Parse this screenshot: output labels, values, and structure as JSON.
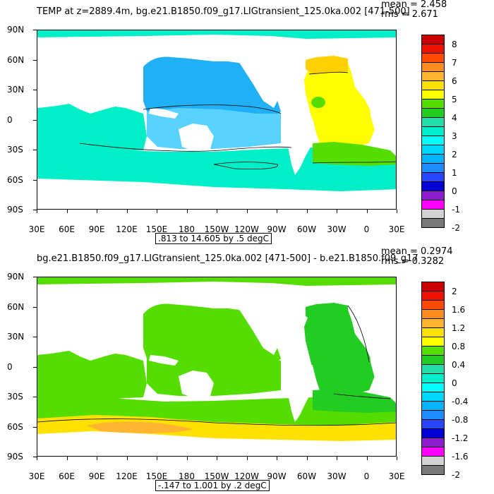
{
  "panels": [
    {
      "title": "TEMP at z=2889.4m, bg.e21.B1850.f09_g17.LIGtransient_125.0ka.002 [471-500]",
      "mean_label": "mean = 2.458",
      "rms_label": "rms = 2.671",
      "range_label": ".813 to 14.605 by .5 degC",
      "colorbar": {
        "labels": [
          "8",
          "7",
          "6",
          "5",
          "4",
          "3",
          "2",
          "1",
          "0",
          "-1",
          "-2"
        ],
        "colors": [
          "#c80000",
          "#ee1000",
          "#ff4a00",
          "#ff8c1e",
          "#ffb432",
          "#ffe100",
          "#ffff00",
          "#55dd00",
          "#22cc22",
          "#22ddaa",
          "#00eecc",
          "#00ffff",
          "#00d7ff",
          "#00b4ff",
          "#1e8cff",
          "#2846ff",
          "#0000d2",
          "#8c1ecd",
          "#ff00ff",
          "#d2d2d2",
          "#787878"
        ]
      },
      "fields": {
        "pacific": "#1fb0f6",
        "pacific_band": "#5ad2ff",
        "southern": "#00eec8",
        "atlantic": "#ffff00",
        "atlantic_band": "#ffd100",
        "atl_south": "#55dd00",
        "indian": "#00eec8",
        "arctic": "#00eec8"
      }
    },
    {
      "title": "bg.e21.B1850.f09_g17.LIGtransient_125.0ka.002 [471-500] - b.e21.B1850.f09_g17",
      "mean_label": "mean = 0.2974",
      "rms_label": "rms = 0.3282",
      "range_label": "-.147 to 1.001 by .2 degC",
      "colorbar": {
        "labels": [
          "2",
          "1.6",
          "1.2",
          "0.8",
          "0.4",
          "0",
          "-0.4",
          "-0.8",
          "-1.2",
          "-1.6",
          "-2"
        ],
        "colors": [
          "#c80000",
          "#ee1000",
          "#ff4a00",
          "#ff8c1e",
          "#ffb432",
          "#ffe100",
          "#ffff00",
          "#55dd00",
          "#22cc22",
          "#22ddaa",
          "#00eecc",
          "#00ffff",
          "#00d7ff",
          "#00b4ff",
          "#1e8cff",
          "#2846ff",
          "#0000d2",
          "#8c1ecd",
          "#ff00ff",
          "#d2d2d2",
          "#787878"
        ]
      },
      "fields": {
        "pacific": "#55dd00",
        "pacific_band": "#55dd00",
        "southern": "#ffe100",
        "atlantic": "#22cc22",
        "atlantic_band": "#22cc22",
        "atl_south": "#22cc22",
        "indian": "#55dd00",
        "arctic": "#55dd00"
      }
    }
  ],
  "axes": {
    "lat_labels": [
      "90N",
      "60N",
      "30N",
      "0",
      "30S",
      "60S",
      "90S"
    ],
    "lon_labels": [
      "30E",
      "60E",
      "90E",
      "120E",
      "150E",
      "180",
      "150W",
      "120W",
      "90W",
      "60W",
      "30W",
      "0",
      "30E"
    ]
  }
}
